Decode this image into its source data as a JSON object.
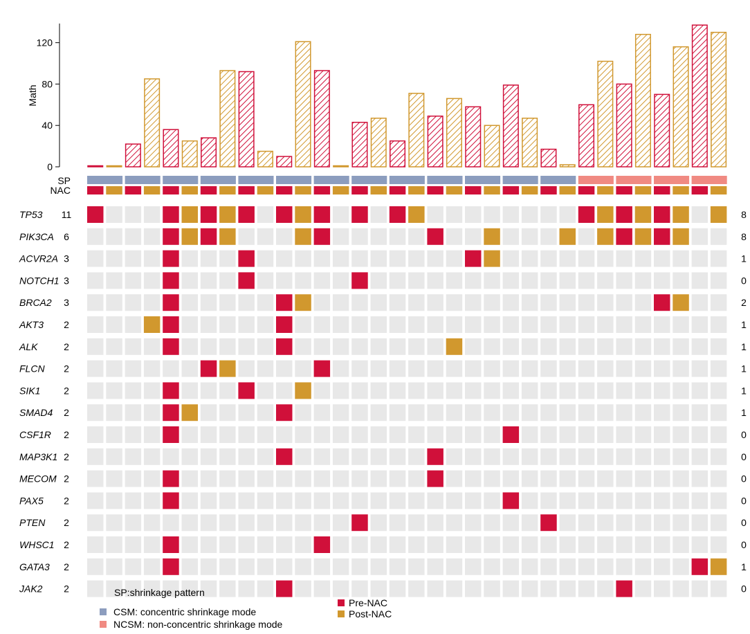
{
  "chart_data": {
    "type": "oncoprint",
    "ylabel": "Math",
    "ylim": [
      0,
      140
    ],
    "yticks": [
      0,
      40,
      80,
      120
    ],
    "row_labels": {
      "sp": "SP",
      "nac": "NAC"
    },
    "samples": [
      {
        "sp": "CSM",
        "pre": 1,
        "post": 1
      },
      {
        "sp": "CSM",
        "pre": 22,
        "post": 85
      },
      {
        "sp": "CSM",
        "pre": 36,
        "post": 25
      },
      {
        "sp": "CSM",
        "pre": 28,
        "post": 93
      },
      {
        "sp": "CSM",
        "pre": 92,
        "post": 15
      },
      {
        "sp": "CSM",
        "pre": 10,
        "post": 121
      },
      {
        "sp": "CSM",
        "pre": 93,
        "post": 1
      },
      {
        "sp": "CSM",
        "pre": 43,
        "post": 47
      },
      {
        "sp": "CSM",
        "pre": 25,
        "post": 71
      },
      {
        "sp": "CSM",
        "pre": 49,
        "post": 66
      },
      {
        "sp": "CSM",
        "pre": 58,
        "post": 40
      },
      {
        "sp": "CSM",
        "pre": 79,
        "post": 47
      },
      {
        "sp": "CSM",
        "pre": 17,
        "post": 2
      },
      {
        "sp": "NCSM",
        "pre": 60,
        "post": 102
      },
      {
        "sp": "NCSM",
        "pre": 80,
        "post": 128
      },
      {
        "sp": "NCSM",
        "pre": 70,
        "post": 116
      },
      {
        "sp": "NCSM",
        "pre": 137,
        "post": 130
      }
    ],
    "genes": [
      {
        "name": "TP53",
        "left": "11",
        "right": "8",
        "hits": [
          [
            0,
            0
          ],
          [
            2,
            0
          ],
          [
            2,
            1
          ],
          [
            3,
            0
          ],
          [
            3,
            1
          ],
          [
            4,
            0
          ],
          [
            5,
            0
          ],
          [
            5,
            1
          ],
          [
            6,
            0
          ],
          [
            7,
            0
          ],
          [
            8,
            0
          ],
          [
            8,
            1
          ],
          [
            13,
            0
          ],
          [
            13,
            1
          ],
          [
            14,
            0
          ],
          [
            14,
            1
          ],
          [
            15,
            0
          ],
          [
            15,
            1
          ],
          [
            16,
            1
          ]
        ]
      },
      {
        "name": "PIK3CA",
        "left": "6",
        "right": "8",
        "hits": [
          [
            2,
            0
          ],
          [
            2,
            1
          ],
          [
            3,
            0
          ],
          [
            3,
            1
          ],
          [
            5,
            1
          ],
          [
            6,
            0
          ],
          [
            9,
            0
          ],
          [
            10,
            1
          ],
          [
            12,
            1
          ],
          [
            13,
            1
          ],
          [
            14,
            0
          ],
          [
            14,
            1
          ],
          [
            15,
            0
          ],
          [
            15,
            1
          ]
        ]
      },
      {
        "name": "ACVR2A",
        "left": "3",
        "right": "1",
        "hits": [
          [
            2,
            0
          ],
          [
            4,
            0
          ],
          [
            10,
            0
          ],
          [
            10,
            1
          ]
        ]
      },
      {
        "name": "NOTCH1",
        "left": "3",
        "right": "0",
        "hits": [
          [
            2,
            0
          ],
          [
            4,
            0
          ],
          [
            7,
            0
          ]
        ]
      },
      {
        "name": "BRCA2",
        "left": "3",
        "right": "2",
        "hits": [
          [
            2,
            0
          ],
          [
            5,
            0
          ],
          [
            5,
            1
          ],
          [
            15,
            0
          ],
          [
            15,
            1
          ]
        ]
      },
      {
        "name": "AKT3",
        "left": "2",
        "right": "1",
        "hits": [
          [
            1,
            1
          ],
          [
            2,
            0
          ],
          [
            5,
            0
          ]
        ]
      },
      {
        "name": "ALK",
        "left": "2",
        "right": "1",
        "hits": [
          [
            2,
            0
          ],
          [
            5,
            0
          ],
          [
            9,
            1
          ]
        ]
      },
      {
        "name": "FLCN",
        "left": "2",
        "right": "1",
        "hits": [
          [
            3,
            0
          ],
          [
            3,
            1
          ],
          [
            6,
            0
          ]
        ]
      },
      {
        "name": "SIK1",
        "left": "2",
        "right": "1",
        "hits": [
          [
            2,
            0
          ],
          [
            4,
            0
          ],
          [
            5,
            1
          ]
        ]
      },
      {
        "name": "SMAD4",
        "left": "2",
        "right": "1",
        "hits": [
          [
            2,
            0
          ],
          [
            2,
            1
          ],
          [
            5,
            0
          ]
        ]
      },
      {
        "name": "CSF1R",
        "left": "2",
        "right": "0",
        "hits": [
          [
            2,
            0
          ],
          [
            11,
            0
          ]
        ]
      },
      {
        "name": "MAP3K1",
        "left": "2",
        "right": "0",
        "hits": [
          [
            5,
            0
          ],
          [
            9,
            0
          ]
        ]
      },
      {
        "name": "MECOM",
        "left": "2",
        "right": "0",
        "hits": [
          [
            2,
            0
          ],
          [
            9,
            0
          ]
        ]
      },
      {
        "name": "PAX5",
        "left": "2",
        "right": "0",
        "hits": [
          [
            2,
            0
          ],
          [
            11,
            0
          ]
        ]
      },
      {
        "name": "PTEN",
        "left": "2",
        "right": "0",
        "hits": [
          [
            7,
            0
          ],
          [
            12,
            0
          ]
        ]
      },
      {
        "name": "WHSC1",
        "left": "2",
        "right": "0",
        "hits": [
          [
            2,
            0
          ],
          [
            6,
            0
          ]
        ]
      },
      {
        "name": "GATA3",
        "left": "2",
        "right": "1",
        "hits": [
          [
            2,
            0
          ],
          [
            16,
            0
          ],
          [
            16,
            1
          ]
        ]
      },
      {
        "name": "JAK2",
        "left": "2",
        "right": "0",
        "hits": [
          [
            5,
            0
          ],
          [
            14,
            0
          ]
        ]
      }
    ],
    "legend": {
      "sp_title": "SP:shrinkage pattern",
      "sp_items": [
        {
          "key": "CSM",
          "label": "CSM: concentric shrinkage mode"
        },
        {
          "key": "NCSM",
          "label": "NCSM: non-concentric shrinkage mode"
        }
      ],
      "nac_items": [
        {
          "key": "pre",
          "label": "Pre-NAC"
        },
        {
          "key": "post",
          "label": "Post-NAC"
        }
      ]
    },
    "colors": {
      "pre": "#D0103A",
      "post": "#D1982E",
      "csm": "#8C9DBE",
      "ncsm": "#F08A82",
      "empty": "#E8E8E8"
    }
  }
}
